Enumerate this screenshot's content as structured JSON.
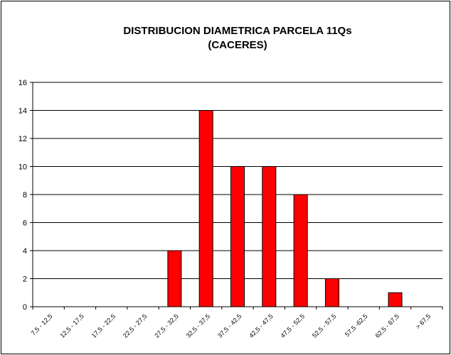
{
  "chart_data": {
    "type": "bar",
    "title": [
      "DISTRIBUCION DIAMETRICA PARCELA 11Qs",
      "(CACERES)"
    ],
    "categories": [
      "7,5 - 12,5",
      "12,5 - 17,5",
      "17,5 - 22,5",
      "22,5 - 27,5",
      "27,5 - 32,5",
      "32,5 - 37,5",
      "37,5 - 42,5",
      "42,5 - 47,5",
      "47,5 - 52,5",
      "52,5 - 57,5",
      "57,5 -62,5",
      "62,5 - 67,5",
      "> 67,5"
    ],
    "values": [
      0,
      0,
      0,
      0,
      4,
      14,
      10,
      10,
      8,
      2,
      0,
      1,
      0
    ],
    "color": "#ff0000",
    "ylim": [
      0,
      16
    ],
    "yticks": [
      0,
      2,
      4,
      6,
      8,
      10,
      12,
      14,
      16
    ],
    "grid": true
  }
}
